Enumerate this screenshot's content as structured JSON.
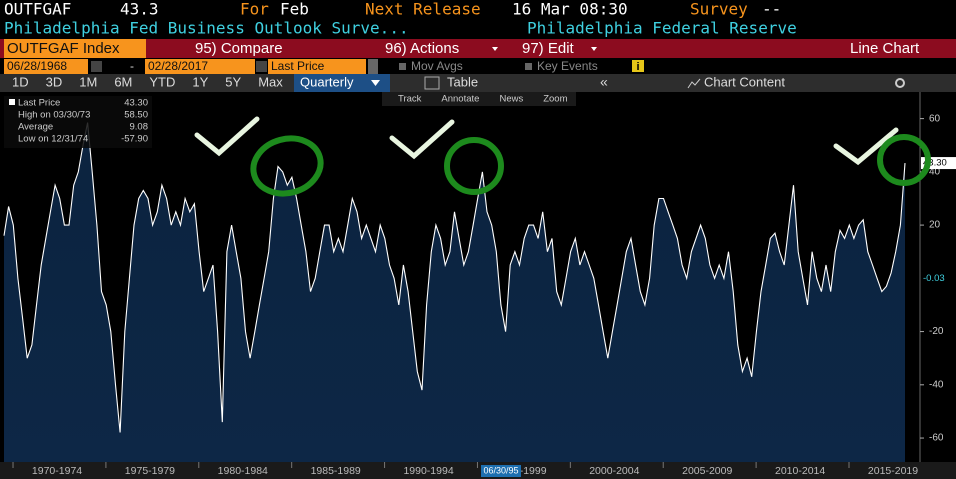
{
  "header": {
    "ticker": "OUTFGAF",
    "value": "43.3",
    "for_label": "For",
    "for_value": "Feb",
    "release_label": "Next Release",
    "release_value": "16 Mar 08:30",
    "survey_label": "Survey",
    "survey_value": "--",
    "description": "Philadelphia Fed Business Outlook Surve...",
    "source": "Philadelphia Federal Reserve"
  },
  "menu": {
    "security": "OUTFGAF Index",
    "compare": "95) Compare",
    "actions": "96) Actions",
    "edit": "97) Edit",
    "view": "Line Chart"
  },
  "controls": {
    "start_date": "06/28/1968",
    "separator": "-",
    "end_date": "02/28/2017",
    "field": "Last Price",
    "mov_avgs": "Mov Avgs",
    "key_events": "Key Events",
    "info": "i"
  },
  "tabs": {
    "ranges": [
      "1D",
      "3D",
      "1M",
      "6M",
      "YTD",
      "1Y",
      "5Y",
      "Max"
    ],
    "period": "Quarterly",
    "table": "Table",
    "collapse": "«",
    "chart_content": "Chart Content"
  },
  "toolbar": [
    "Track",
    "Annotate",
    "News",
    "Zoom"
  ],
  "legend": [
    {
      "label": "Last Price",
      "value": "43.30"
    },
    {
      "label": "High on 03/30/73",
      "value": "58.50"
    },
    {
      "label": "Average",
      "value": "9.08"
    },
    {
      "label": "Low on 12/31/74",
      "value": "-57.90"
    }
  ],
  "chart_data": {
    "type": "area",
    "color": "#ffffff",
    "fill": "#0d2746",
    "categories": [
      null,
      null,
      null,
      null,
      null,
      null,
      null,
      null,
      null,
      null,
      null,
      null,
      null,
      null,
      "1970-1974",
      null,
      null,
      null,
      null,
      null,
      null,
      null,
      null,
      null,
      null,
      null,
      null,
      null,
      null,
      null,
      null,
      null,
      null,
      null,
      "1975-1979",
      null,
      null,
      null,
      null,
      null,
      null,
      null,
      null,
      null,
      null,
      null,
      null,
      null,
      null,
      null,
      null,
      null,
      null,
      null,
      "1980-1984",
      null,
      null,
      null,
      null,
      null,
      null,
      null,
      null,
      null,
      null,
      null,
      null,
      null,
      null,
      null,
      null,
      null,
      null,
      null,
      "1985-1989",
      null,
      null,
      null,
      null,
      null,
      null,
      null,
      null,
      null,
      null,
      null,
      null,
      null,
      null,
      null,
      null,
      null,
      null,
      null,
      "1990-1994",
      null,
      null,
      null,
      null,
      null,
      null,
      null,
      null,
      null,
      null,
      null,
      null,
      null,
      null,
      null,
      null,
      null,
      null,
      null,
      "1995-1999",
      null,
      null,
      null,
      null,
      null,
      null,
      null,
      null,
      null,
      null,
      null,
      null,
      null,
      null,
      null,
      null,
      null,
      null,
      null,
      "2000-2004",
      null,
      null,
      null,
      null,
      null,
      null,
      null,
      null,
      null,
      null,
      null,
      null,
      null,
      null,
      null,
      null,
      null,
      null,
      null,
      "2005-2009",
      null,
      null,
      null,
      null,
      null,
      null,
      null,
      null,
      null,
      null,
      null,
      null,
      null,
      null,
      null,
      null,
      null,
      null,
      null,
      "2010-2014",
      null,
      null,
      null,
      null,
      null,
      null,
      null,
      null,
      null,
      null,
      null,
      null,
      null,
      null,
      null,
      null,
      null,
      null,
      null,
      "2015-2019"
    ],
    "values": [
      16,
      27,
      20,
      0,
      -15,
      -30,
      -25,
      -10,
      5,
      15,
      25,
      35,
      30,
      20,
      20,
      35,
      40,
      50,
      58.5,
      40,
      20,
      -5,
      -10,
      -20,
      -40,
      -57.9,
      -20,
      0,
      20,
      30,
      33,
      30,
      20,
      25,
      35,
      30,
      20,
      25,
      20,
      30,
      25,
      28,
      10,
      -5,
      0,
      5,
      -20,
      -54,
      10,
      20,
      10,
      0,
      -20,
      -30,
      -20,
      -10,
      0,
      10,
      30,
      42,
      40,
      35,
      38,
      30,
      20,
      10,
      -5,
      0,
      10,
      20,
      20,
      10,
      15,
      10,
      20,
      30,
      25,
      15,
      20,
      15,
      10,
      20,
      15,
      5,
      0,
      -10,
      5,
      -5,
      -20,
      -35,
      -42,
      -10,
      10,
      20,
      15,
      5,
      10,
      25,
      15,
      5,
      10,
      20,
      30,
      40,
      25,
      20,
      10,
      -10,
      -20,
      5,
      10,
      5,
      15,
      20,
      20,
      15,
      25,
      10,
      15,
      -5,
      -10,
      0,
      10,
      15,
      5,
      10,
      5,
      0,
      -10,
      -20,
      -30,
      -20,
      -10,
      0,
      10,
      15,
      5,
      -5,
      -10,
      0,
      20,
      30,
      30,
      25,
      20,
      15,
      5,
      0,
      10,
      15,
      20,
      15,
      5,
      0,
      5,
      0,
      10,
      -5,
      -25,
      -35,
      -30,
      -37,
      -20,
      -5,
      5,
      15,
      17,
      10,
      5,
      20,
      35,
      10,
      0,
      -10,
      10,
      0,
      -5,
      5,
      -5,
      10,
      18,
      15,
      20,
      15,
      20,
      22,
      10,
      5,
      0,
      -5,
      -3,
      2,
      10,
      20,
      43.3
    ],
    "ylim": [
      -69,
      70
    ],
    "yticks": [
      -60,
      -40,
      -20,
      20,
      40,
      60
    ],
    "annotations": [
      {
        "value": 43.3,
        "label": "43.30"
      },
      {
        "value": -0.03,
        "label": "-0.03"
      }
    ],
    "cursor_label": "06/30/95"
  }
}
